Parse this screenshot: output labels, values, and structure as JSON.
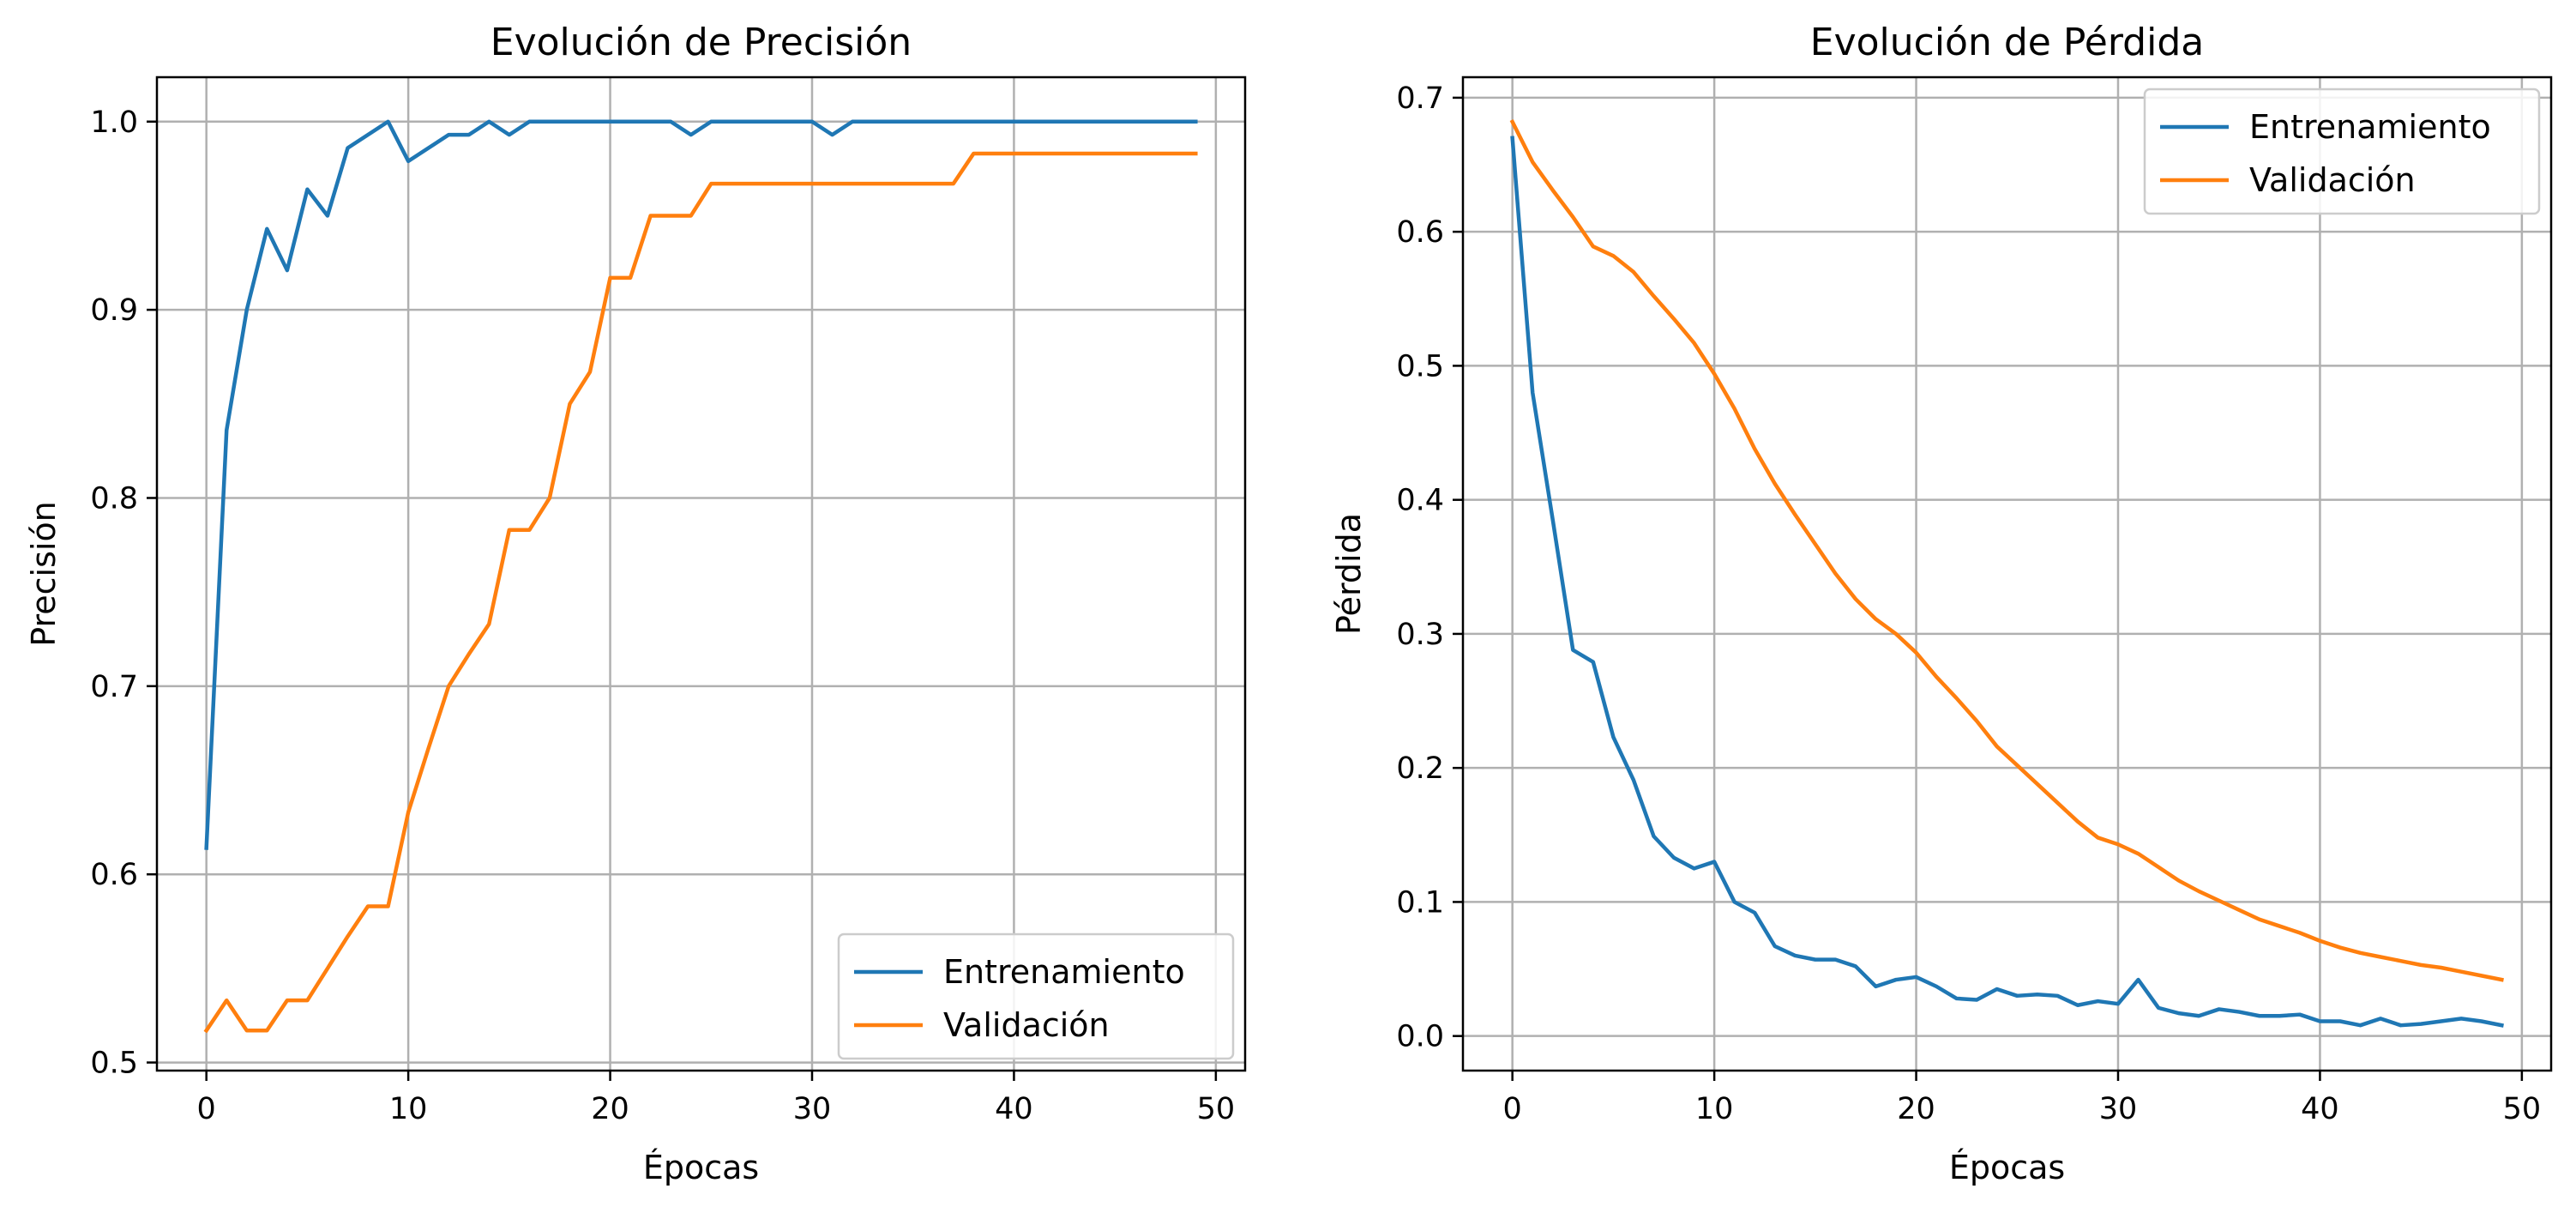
{
  "chart_data": [
    {
      "type": "line",
      "title": "Evolución de Precisión",
      "xlabel": "Épocas",
      "ylabel": "Precisión",
      "xlim": [
        -2.45,
        51.45
      ],
      "ylim": [
        0.4957,
        1.0236
      ],
      "xticks": [
        0,
        10,
        20,
        30,
        40,
        50
      ],
      "yticks": [
        0.5,
        0.6,
        0.7,
        0.8,
        0.9,
        1.0
      ],
      "xtick_labels": [
        "0",
        "10",
        "20",
        "30",
        "40",
        "50"
      ],
      "ytick_labels": [
        "0.5",
        "0.6",
        "0.7",
        "0.8",
        "0.9",
        "1.0"
      ],
      "grid": true,
      "legend": "lower-right",
      "series": [
        {
          "name": "Entrenamiento",
          "color": "#1f77b4",
          "x": [
            0,
            1,
            2,
            3,
            4,
            5,
            6,
            7,
            8,
            9,
            10,
            11,
            12,
            13,
            14,
            15,
            16,
            17,
            18,
            19,
            20,
            21,
            22,
            23,
            24,
            25,
            26,
            27,
            28,
            29,
            30,
            31,
            32,
            33,
            34,
            35,
            36,
            37,
            38,
            39,
            40,
            41,
            42,
            43,
            44,
            45,
            46,
            47,
            48,
            49
          ],
          "values": [
            0.614,
            0.836,
            0.9,
            0.943,
            0.921,
            0.964,
            0.95,
            0.986,
            0.993,
            1.0,
            0.979,
            0.986,
            0.993,
            0.993,
            1.0,
            0.993,
            1.0,
            1.0,
            1.0,
            1.0,
            1.0,
            1.0,
            1.0,
            1.0,
            0.993,
            1.0,
            1.0,
            1.0,
            1.0,
            1.0,
            1.0,
            0.993,
            1.0,
            1.0,
            1.0,
            1.0,
            1.0,
            1.0,
            1.0,
            1.0,
            1.0,
            1.0,
            1.0,
            1.0,
            1.0,
            1.0,
            1.0,
            1.0,
            1.0,
            1.0
          ]
        },
        {
          "name": "Validación",
          "color": "#ff7f0e",
          "x": [
            0,
            1,
            2,
            3,
            4,
            5,
            6,
            7,
            8,
            9,
            10,
            11,
            12,
            13,
            14,
            15,
            16,
            17,
            18,
            19,
            20,
            21,
            22,
            23,
            24,
            25,
            26,
            27,
            28,
            29,
            30,
            31,
            32,
            33,
            34,
            35,
            36,
            37,
            38,
            39,
            40,
            41,
            42,
            43,
            44,
            45,
            46,
            47,
            48,
            49
          ],
          "values": [
            0.517,
            0.533,
            0.517,
            0.517,
            0.533,
            0.533,
            0.55,
            0.567,
            0.583,
            0.583,
            0.633,
            0.667,
            0.7,
            0.717,
            0.733,
            0.783,
            0.783,
            0.8,
            0.85,
            0.867,
            0.917,
            0.917,
            0.95,
            0.95,
            0.95,
            0.967,
            0.967,
            0.967,
            0.967,
            0.967,
            0.967,
            0.967,
            0.967,
            0.967,
            0.967,
            0.967,
            0.967,
            0.967,
            0.983,
            0.983,
            0.983,
            0.983,
            0.983,
            0.983,
            0.983,
            0.983,
            0.983,
            0.983,
            0.983,
            0.983
          ]
        }
      ]
    },
    {
      "type": "line",
      "title": "Evolución de Pérdida",
      "xlabel": "Épocas",
      "ylabel": "Pérdida",
      "xlim": [
        -2.45,
        51.45
      ],
      "ylim": [
        -0.0258,
        0.7153
      ],
      "xticks": [
        0,
        10,
        20,
        30,
        40,
        50
      ],
      "yticks": [
        0.0,
        0.1,
        0.2,
        0.3,
        0.4,
        0.5,
        0.6,
        0.7
      ],
      "xtick_labels": [
        "0",
        "10",
        "20",
        "30",
        "40",
        "50"
      ],
      "ytick_labels": [
        "0.0",
        "0.1",
        "0.2",
        "0.3",
        "0.4",
        "0.5",
        "0.6",
        "0.7"
      ],
      "grid": true,
      "legend": "upper-right",
      "series": [
        {
          "name": "Entrenamiento",
          "color": "#1f77b4",
          "x": [
            0,
            1,
            2,
            3,
            4,
            5,
            6,
            7,
            8,
            9,
            10,
            11,
            12,
            13,
            14,
            15,
            16,
            17,
            18,
            19,
            20,
            21,
            22,
            23,
            24,
            25,
            26,
            27,
            28,
            29,
            30,
            31,
            32,
            33,
            34,
            35,
            36,
            37,
            38,
            39,
            40,
            41,
            42,
            43,
            44,
            45,
            46,
            47,
            48,
            49
          ],
          "values": [
            0.67,
            0.48,
            0.385,
            0.288,
            0.279,
            0.223,
            0.191,
            0.149,
            0.133,
            0.125,
            0.13,
            0.1,
            0.092,
            0.067,
            0.06,
            0.057,
            0.057,
            0.052,
            0.037,
            0.042,
            0.044,
            0.037,
            0.028,
            0.027,
            0.035,
            0.03,
            0.031,
            0.03,
            0.023,
            0.026,
            0.024,
            0.042,
            0.021,
            0.017,
            0.015,
            0.02,
            0.018,
            0.015,
            0.015,
            0.016,
            0.011,
            0.011,
            0.008,
            0.013,
            0.008,
            0.009,
            0.011,
            0.013,
            0.011,
            0.008
          ]
        },
        {
          "name": "Validación",
          "color": "#ff7f0e",
          "x": [
            0,
            1,
            2,
            3,
            4,
            5,
            6,
            7,
            8,
            9,
            10,
            11,
            12,
            13,
            14,
            15,
            16,
            17,
            18,
            19,
            20,
            21,
            22,
            23,
            24,
            25,
            26,
            27,
            28,
            29,
            30,
            31,
            32,
            33,
            34,
            35,
            36,
            37,
            38,
            39,
            40,
            41,
            42,
            43,
            44,
            45,
            46,
            47,
            48,
            49
          ],
          "values": [
            0.682,
            0.652,
            0.631,
            0.611,
            0.589,
            0.582,
            0.57,
            0.552,
            0.535,
            0.517,
            0.494,
            0.468,
            0.438,
            0.412,
            0.389,
            0.367,
            0.345,
            0.326,
            0.311,
            0.3,
            0.286,
            0.268,
            0.252,
            0.235,
            0.216,
            0.202,
            0.188,
            0.174,
            0.16,
            0.148,
            0.143,
            0.136,
            0.126,
            0.116,
            0.108,
            0.101,
            0.094,
            0.087,
            0.082,
            0.077,
            0.071,
            0.066,
            0.062,
            0.059,
            0.056,
            0.053,
            0.051,
            0.048,
            0.045,
            0.042
          ]
        }
      ]
    }
  ]
}
